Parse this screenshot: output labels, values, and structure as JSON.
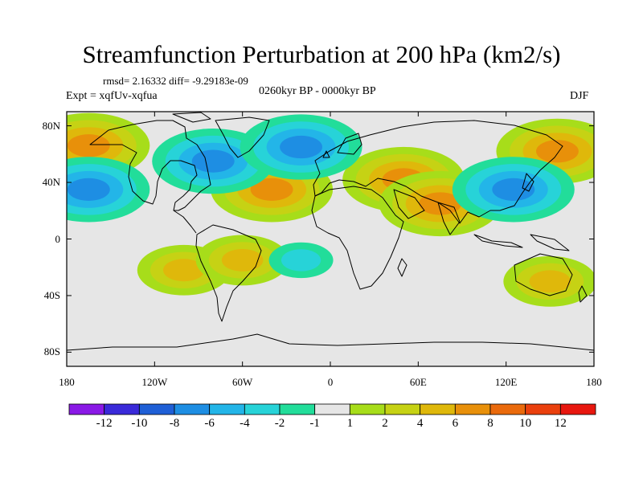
{
  "title": "Streamfunction Perturbation at 200 hPa (km2/s)",
  "stats": "rmsd= 2.16332 diff= -9.29183e-09",
  "expt": "Expt = xqfUv-xqfua",
  "period": "0260kyr BP - 0000kyr BP",
  "season": "DJF",
  "chart_data": {
    "type": "heatmap",
    "title": "Streamfunction Perturbation at 200 hPa (km2/s)",
    "subtitle": "0260kyr BP - 0000kyr BP",
    "season": "DJF",
    "units": "km2/s",
    "x_ticks": [
      "180",
      "120W",
      "60W",
      "0",
      "60E",
      "120E",
      "180"
    ],
    "y_ticks": [
      "80N",
      "40N",
      "0",
      "40S",
      "80S"
    ],
    "xlim": [
      -180,
      180
    ],
    "ylim": [
      -90,
      90
    ],
    "colorbar": {
      "labels": [
        "-12",
        "-10",
        "-8",
        "-6",
        "-4",
        "-2",
        "-1",
        "1",
        "2",
        "4",
        "6",
        "8",
        "10",
        "12"
      ],
      "colors": [
        "#8a19e6",
        "#3a2ad9",
        "#1f5fd6",
        "#1e8ee3",
        "#23b5e8",
        "#27d3d8",
        "#22dd9a",
        "#e6e6e6",
        "#a7dd1a",
        "#c6d214",
        "#dfb80b",
        "#e8900a",
        "#ea6a0c",
        "#ea400d",
        "#e8170f"
      ]
    },
    "regions": [
      {
        "lon": -165,
        "lat": 66,
        "value": 6
      },
      {
        "lon": -40,
        "lat": 35,
        "value": 6
      },
      {
        "lon": 50,
        "lat": 42,
        "value": 6
      },
      {
        "lon": 75,
        "lat": 25,
        "value": 6
      },
      {
        "lon": 155,
        "lat": 62,
        "value": 6
      },
      {
        "lon": -100,
        "lat": -22,
        "value": 4
      },
      {
        "lon": -60,
        "lat": -15,
        "value": 4
      },
      {
        "lon": 150,
        "lat": -30,
        "value": 4
      },
      {
        "lon": -80,
        "lat": 55,
        "value": -6
      },
      {
        "lon": -20,
        "lat": 65,
        "value": -6
      },
      {
        "lon": -165,
        "lat": 35,
        "value": -6
      },
      {
        "lon": 125,
        "lat": 35,
        "value": -6
      },
      {
        "lon": -20,
        "lat": -15,
        "value": -2
      }
    ]
  }
}
